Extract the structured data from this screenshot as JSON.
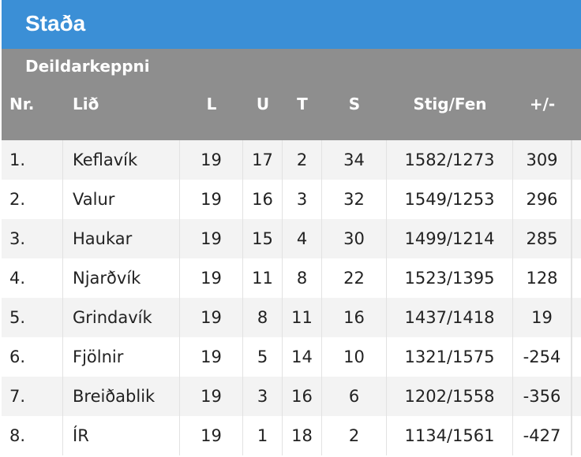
{
  "header": {
    "title": "Staða"
  },
  "table": {
    "subtitle": "Deildarkeppni",
    "columns": [
      "Nr.",
      "Lið",
      "L",
      "U",
      "T",
      "S",
      "Stig/Fen",
      "+/-"
    ],
    "rows": [
      [
        "1.",
        "Keflavík",
        19,
        17,
        2,
        34,
        "1582/1273",
        309
      ],
      [
        "2.",
        "Valur",
        19,
        16,
        3,
        32,
        "1549/1253",
        296
      ],
      [
        "3.",
        "Haukar",
        19,
        15,
        4,
        30,
        "1499/1214",
        285
      ],
      [
        "4.",
        "Njarðvík",
        19,
        11,
        8,
        22,
        "1523/1395",
        128
      ],
      [
        "5.",
        "Grindavík",
        19,
        8,
        11,
        16,
        "1437/1418",
        19
      ],
      [
        "6.",
        "Fjölnir",
        19,
        5,
        14,
        10,
        "1321/1575",
        -254
      ],
      [
        "7.",
        "Breiðablik",
        19,
        3,
        16,
        6,
        "1202/1558",
        -356
      ],
      [
        "8.",
        "ÍR",
        19,
        1,
        18,
        2,
        "1134/1561",
        -427
      ]
    ]
  }
}
